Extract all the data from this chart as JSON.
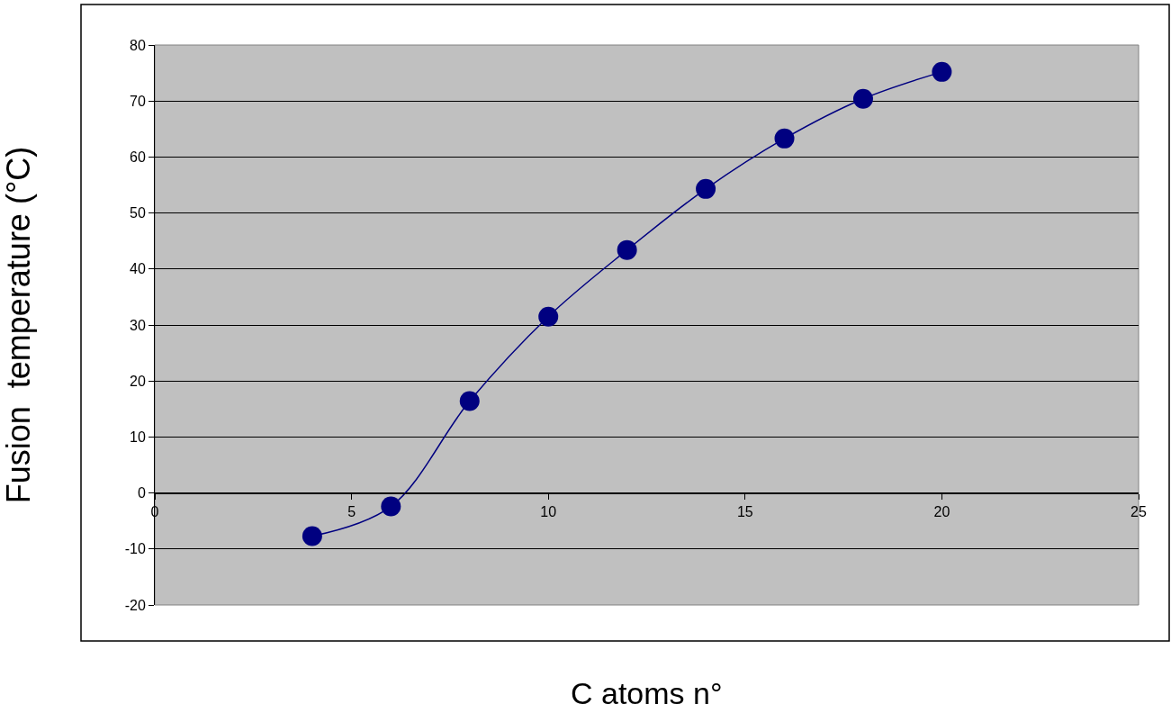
{
  "chart_data": {
    "type": "line",
    "xlabel": "C atoms n°",
    "ylabel": "Fusion  temperature (°C)",
    "x": [
      4,
      6,
      8,
      10,
      12,
      14,
      16,
      18,
      20
    ],
    "series": [
      {
        "color": "#000080",
        "values": [
          -7.7,
          -2.4,
          16.4,
          31.5,
          43.4,
          54.3,
          63.3,
          70.4,
          75.2
        ]
      }
    ],
    "xlim": [
      0,
      25
    ],
    "xticks": [
      0,
      5,
      10,
      15,
      20,
      25
    ],
    "ylim": [
      -20,
      80
    ],
    "yticks": [
      -20,
      -10,
      0,
      10,
      20,
      30,
      40,
      50,
      60,
      70,
      80
    ],
    "grid": "y",
    "marker": "circle",
    "line_style": "solid"
  }
}
